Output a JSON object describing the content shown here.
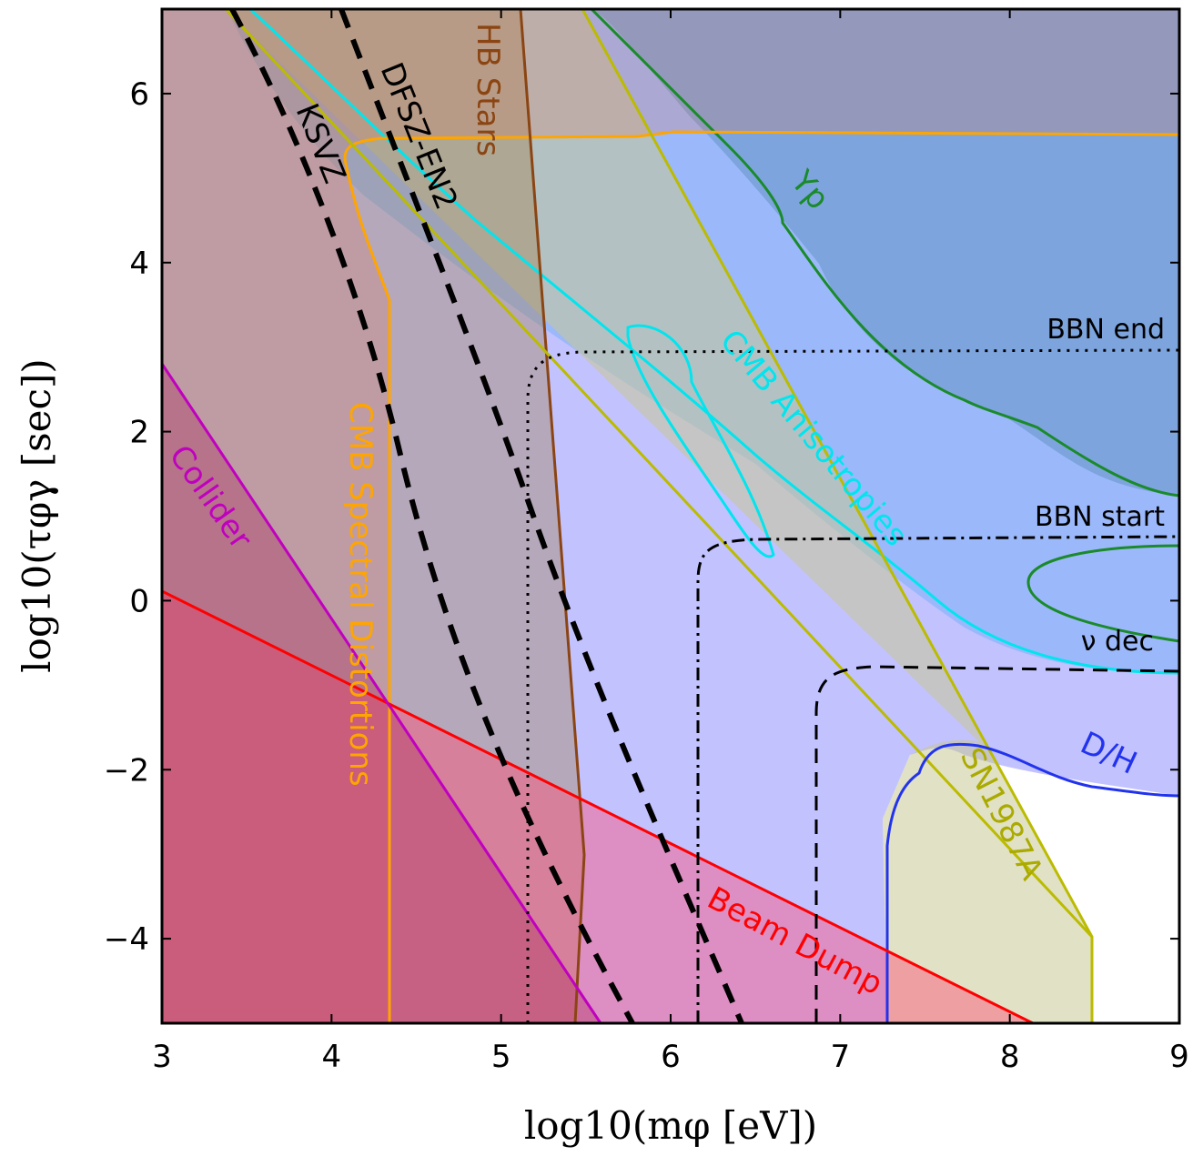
{
  "chart_data": {
    "type": "area",
    "xlabel": "log10(mφ [eV])",
    "ylabel": "log10(τφγ [sec])",
    "xlim": [
      3,
      9
    ],
    "ylim": [
      -5,
      7
    ],
    "x_ticks": [
      "3",
      "4",
      "5",
      "6",
      "7",
      "8",
      "9"
    ],
    "y_ticks": [
      "−4",
      "−2",
      "0",
      "2",
      "4",
      "6"
    ],
    "grid": false,
    "regions": [
      {
        "name": "Collider",
        "color": "#c000c0",
        "fill": "rgba(192,0,192,0.45)",
        "boundary": [
          [
            3.0,
            2.8
          ],
          [
            5.6,
            -5.0
          ]
        ]
      },
      {
        "name": "Beam Dump",
        "color": "#ff0000",
        "fill": "rgba(255,0,0,0.3)",
        "boundary": [
          [
            3.0,
            0.15
          ],
          [
            8.15,
            -5.0
          ]
        ]
      },
      {
        "name": "CMB Spectral Distortions",
        "color": "#ffa500",
        "fill": "rgba(255,140,0,0.18)",
        "boundary": [
          [
            4.35,
            -5.0
          ],
          [
            4.35,
            3.6
          ],
          [
            4.2,
            4.3
          ],
          [
            4.05,
            5.3
          ],
          [
            4.2,
            5.45
          ],
          [
            5.8,
            5.5
          ],
          [
            6.0,
            5.55
          ],
          [
            9.0,
            5.5
          ]
        ]
      },
      {
        "name": "HB Stars",
        "color": "#8b4513",
        "fill": "rgba(139,69,19,0.3)",
        "boundary": [
          [
            5.15,
            7.0
          ],
          [
            5.5,
            -5.0
          ]
        ]
      },
      {
        "name": "CMB Anisotropies",
        "color": "#00ffff",
        "fill": "rgba(0,200,220,0.3)",
        "boundary": [
          [
            3.55,
            7.0
          ],
          [
            5.0,
            4.5
          ],
          [
            6.5,
            2.5
          ],
          [
            7.5,
            1.0
          ],
          [
            8.5,
            0.0
          ],
          [
            9.0,
            -0.8
          ]
        ]
      },
      {
        "name": "Yp",
        "color": "#1a8a2a",
        "fill": "rgba(30,110,30,0.35)",
        "boundary": [
          [
            6.5,
            7.0
          ],
          [
            7.3,
            5.2
          ],
          [
            8.0,
            2.6
          ],
          [
            9.0,
            1.2
          ]
        ]
      },
      {
        "name": "D/H",
        "color": "#2222dd",
        "fill": "rgba(80,80,255,0.3)",
        "boundary": [
          [
            7.28,
            -5.0
          ],
          [
            7.3,
            -2.3
          ],
          [
            7.5,
            -1.7
          ],
          [
            8.5,
            -2.0
          ],
          [
            9.0,
            -2.3
          ]
        ]
      },
      {
        "name": "SN1987A",
        "color": "#bbbb00",
        "fill": "rgba(220,220,100,0.55)",
        "boundary": [
          [
            3.38,
            7.0
          ],
          [
            8.5,
            -4.0
          ],
          [
            8.5,
            -5.0
          ]
        ]
      }
    ],
    "model_lines": [
      {
        "name": "KSVZ",
        "style": "dashed",
        "points": [
          [
            3.4,
            7.0
          ],
          [
            4.4,
            2.0
          ],
          [
            5.75,
            -5.0
          ]
        ]
      },
      {
        "name": "DFSZ-EN2",
        "style": "dashed",
        "points": [
          [
            4.05,
            7.0
          ],
          [
            5.0,
            2.4
          ],
          [
            6.4,
            -5.0
          ]
        ]
      }
    ],
    "epoch_lines": [
      {
        "name": "BBN end",
        "style": "dotted",
        "y": 2.95,
        "x_start": 5.15
      },
      {
        "name": "BBN start",
        "style": "dash-dot",
        "y": 0.75,
        "x_start": 6.15
      },
      {
        "name": "ν dec",
        "style": "dashed",
        "y": -0.8,
        "x_start": 6.85
      }
    ]
  },
  "labels": {
    "collider": "Collider",
    "beam_dump": "Beam Dump",
    "cmb_spectral": "CMB Spectral Distortions",
    "hb_stars": "HB Stars",
    "cmb_aniso": "CMB Anisotropies",
    "yp": "Yp",
    "dh": "D/H",
    "sn": "SN1987A",
    "ksvz": "KSVZ",
    "dfsz": "DFSZ-EN2",
    "bbn_end": "BBN end",
    "bbn_start": "BBN start",
    "nu_dec": "ν dec"
  }
}
